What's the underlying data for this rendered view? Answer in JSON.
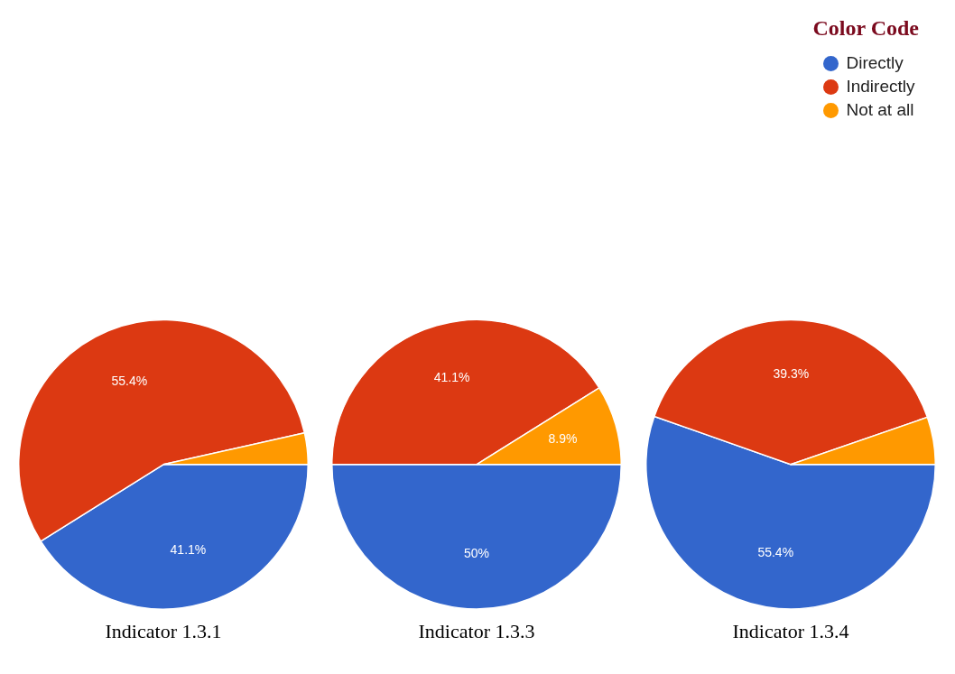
{
  "chart_data": [
    {
      "type": "pie",
      "title": "Indicator 1.3.1",
      "categories": [
        null,
        null,
        null
      ],
      "values": [
        41.1,
        55.4,
        3.5
      ],
      "colors": [
        "#3366cc",
        "#dc3912",
        "#ff9900"
      ],
      "value_labels": [
        "41.1%",
        "55.4%",
        null
      ],
      "legend": false
    },
    {
      "type": "pie",
      "title": "Indicator 1.3.3",
      "categories": [
        null,
        null,
        null
      ],
      "values": [
        50,
        41.1,
        8.9
      ],
      "colors": [
        "#3366cc",
        "#dc3912",
        "#ff9900"
      ],
      "value_labels": [
        "50%",
        "41.1%",
        "8.9%"
      ],
      "legend": false
    },
    {
      "type": "pie",
      "title": "Indicator 1.3.4",
      "categories": [
        "Directly",
        "Indirectly",
        "Not at all"
      ],
      "values": [
        55.4,
        39.3,
        5.3
      ],
      "colors": [
        "#3366cc",
        "#dc3912",
        "#ff9900"
      ],
      "value_labels": [
        "55.4%",
        "39.3%",
        null
      ],
      "legend": "top right",
      "legend_title": "Color Code"
    }
  ]
}
